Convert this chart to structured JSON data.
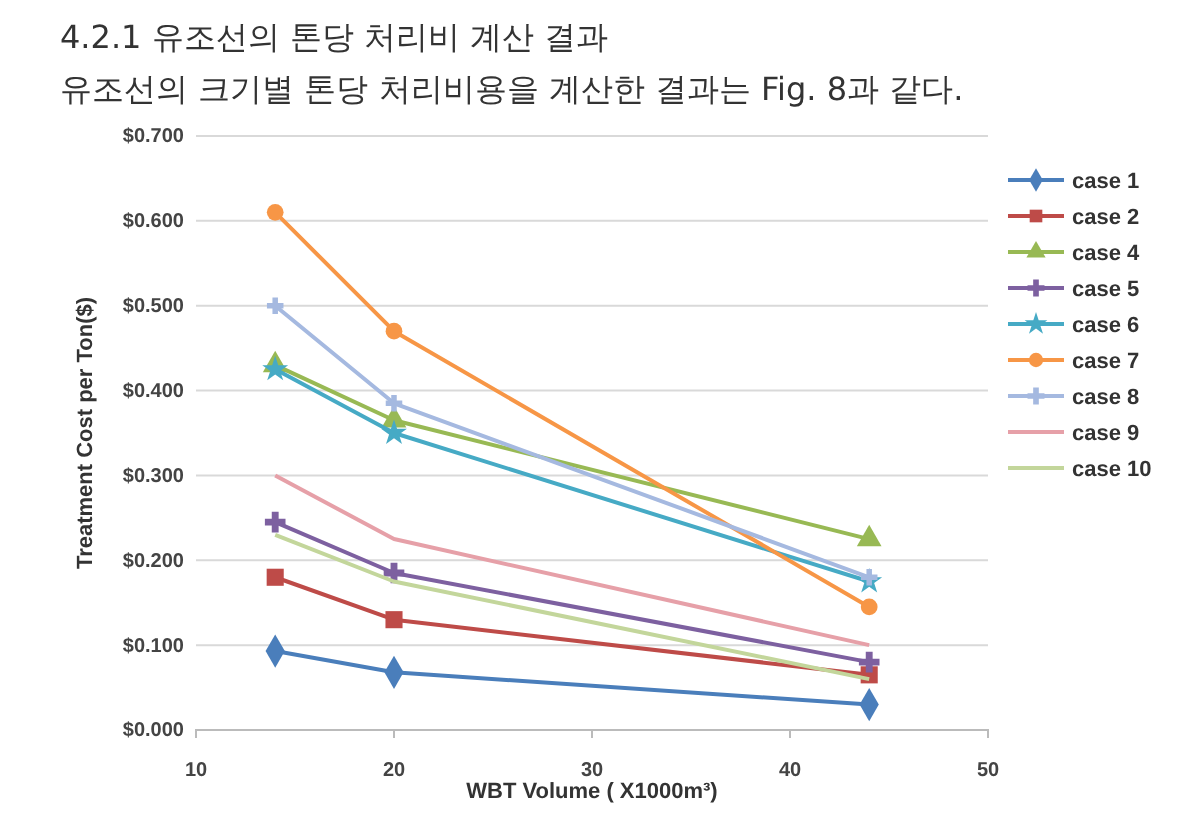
{
  "chart_data": {
    "type": "line",
    "title": "4.2.1 유조선의 톤당 처리비 계산 결과",
    "annotations": [
      "유조선의 크기별 톤당 처리비용을 계산한 결과는 Fig. 8과 같다."
    ],
    "xlabel": "WBT Volume ( X1000m³)",
    "ylabel": "Treatment Cost per Ton($)",
    "x": [
      14,
      20,
      44
    ],
    "series": [
      {
        "name": "case 1",
        "color": "#4a7ebb",
        "marker": "diamond",
        "values": [
          0.093,
          0.068,
          0.03
        ]
      },
      {
        "name": "case 2",
        "color": "#be4b48",
        "marker": "square",
        "values": [
          0.18,
          0.13,
          0.065
        ]
      },
      {
        "name": "case 4",
        "color": "#98b954",
        "marker": "triangle",
        "values": [
          0.43,
          0.365,
          0.225
        ]
      },
      {
        "name": "case 5",
        "color": "#7d60a0",
        "marker": "cross",
        "values": [
          0.245,
          0.185,
          0.08
        ]
      },
      {
        "name": "case 6",
        "color": "#46aac5",
        "marker": "star",
        "values": [
          0.425,
          0.35,
          0.175
        ]
      },
      {
        "name": "case 7",
        "color": "#f79646",
        "marker": "circle",
        "values": [
          0.61,
          0.47,
          0.145
        ]
      },
      {
        "name": "case 8",
        "color": "#a5b9e0",
        "marker": "cross",
        "values": [
          0.5,
          0.385,
          0.18
        ]
      },
      {
        "name": "case 9",
        "color": "#e6a0a8",
        "marker": "none",
        "values": [
          0.3,
          0.225,
          0.1
        ]
      },
      {
        "name": "case 10",
        "color": "#c3d69b",
        "marker": "none",
        "values": [
          0.23,
          0.175,
          0.06
        ]
      }
    ],
    "xlim": [
      10,
      50
    ],
    "xticks": [
      10,
      20,
      30,
      40,
      50
    ],
    "ylim": [
      0,
      0.7
    ],
    "yticks": [
      {
        "value": 0,
        "label": "$0.000"
      },
      {
        "value": 0.1,
        "label": "$0.100"
      },
      {
        "value": 0.2,
        "label": "$0.200"
      },
      {
        "value": 0.3,
        "label": "$0.300"
      },
      {
        "value": 0.4,
        "label": "$0.400"
      },
      {
        "value": 0.5,
        "label": "$0.500"
      },
      {
        "value": 0.6,
        "label": "$0.600"
      },
      {
        "value": 0.7,
        "label": "$0.700"
      }
    ],
    "grid": "y",
    "legend": "right",
    "line_style": "solid"
  }
}
